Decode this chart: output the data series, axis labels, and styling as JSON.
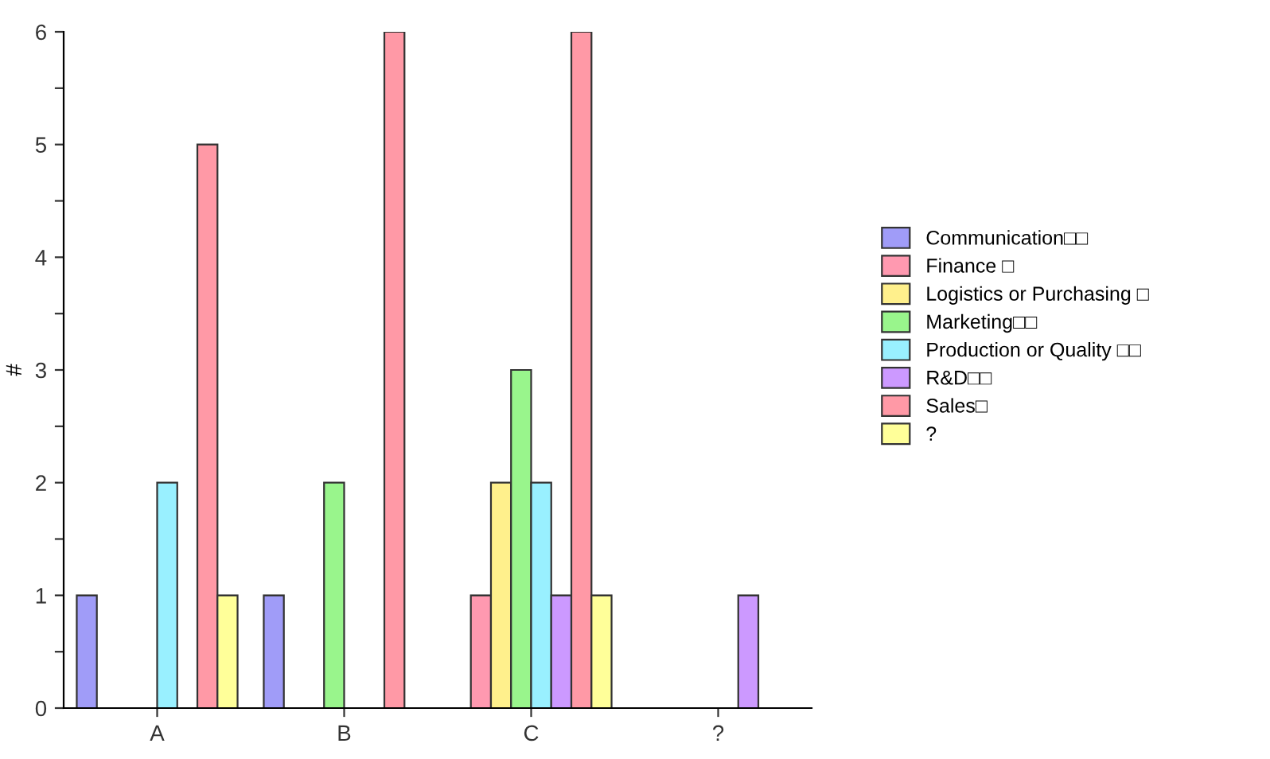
{
  "chart_data": {
    "type": "bar",
    "ylabel": "#",
    "categories": [
      "A",
      "B",
      "C",
      "?"
    ],
    "series": [
      {
        "name": "Communication□□",
        "color": "#a09cf8",
        "values": [
          1,
          1,
          null,
          null
        ]
      },
      {
        "name": "Finance □",
        "color": "#ff99b0",
        "values": [
          null,
          null,
          1,
          null
        ]
      },
      {
        "name": "Logistics or Purchasing □",
        "color": "#fff08c",
        "values": [
          null,
          null,
          2,
          null
        ]
      },
      {
        "name": "Marketing□□",
        "color": "#99f58c",
        "values": [
          null,
          2,
          3,
          null
        ]
      },
      {
        "name": "Production or Quality □□",
        "color": "#99f0ff",
        "values": [
          2,
          null,
          2,
          null
        ]
      },
      {
        "name": "R&D□□",
        "color": "#cc99ff",
        "values": [
          null,
          null,
          1,
          1
        ]
      },
      {
        "name": "Sales□",
        "color": "#ff99a6",
        "values": [
          5,
          6,
          6,
          null
        ]
      },
      {
        "name": "?",
        "color": "#ffff99",
        "values": [
          1,
          null,
          1,
          null
        ]
      }
    ],
    "ylim": [
      0,
      6
    ],
    "yticks": [
      0,
      {
        "value": 0.5,
        "label": null
      },
      1,
      {
        "value": 1.5,
        "label": null
      },
      2,
      {
        "value": 2.5,
        "label": null
      },
      3,
      {
        "value": 3.5,
        "label": null
      },
      4,
      {
        "value": 4.5,
        "label": null
      },
      5,
      {
        "value": 5.5,
        "label": null
      },
      6
    ],
    "grid": false,
    "legend": "right"
  }
}
